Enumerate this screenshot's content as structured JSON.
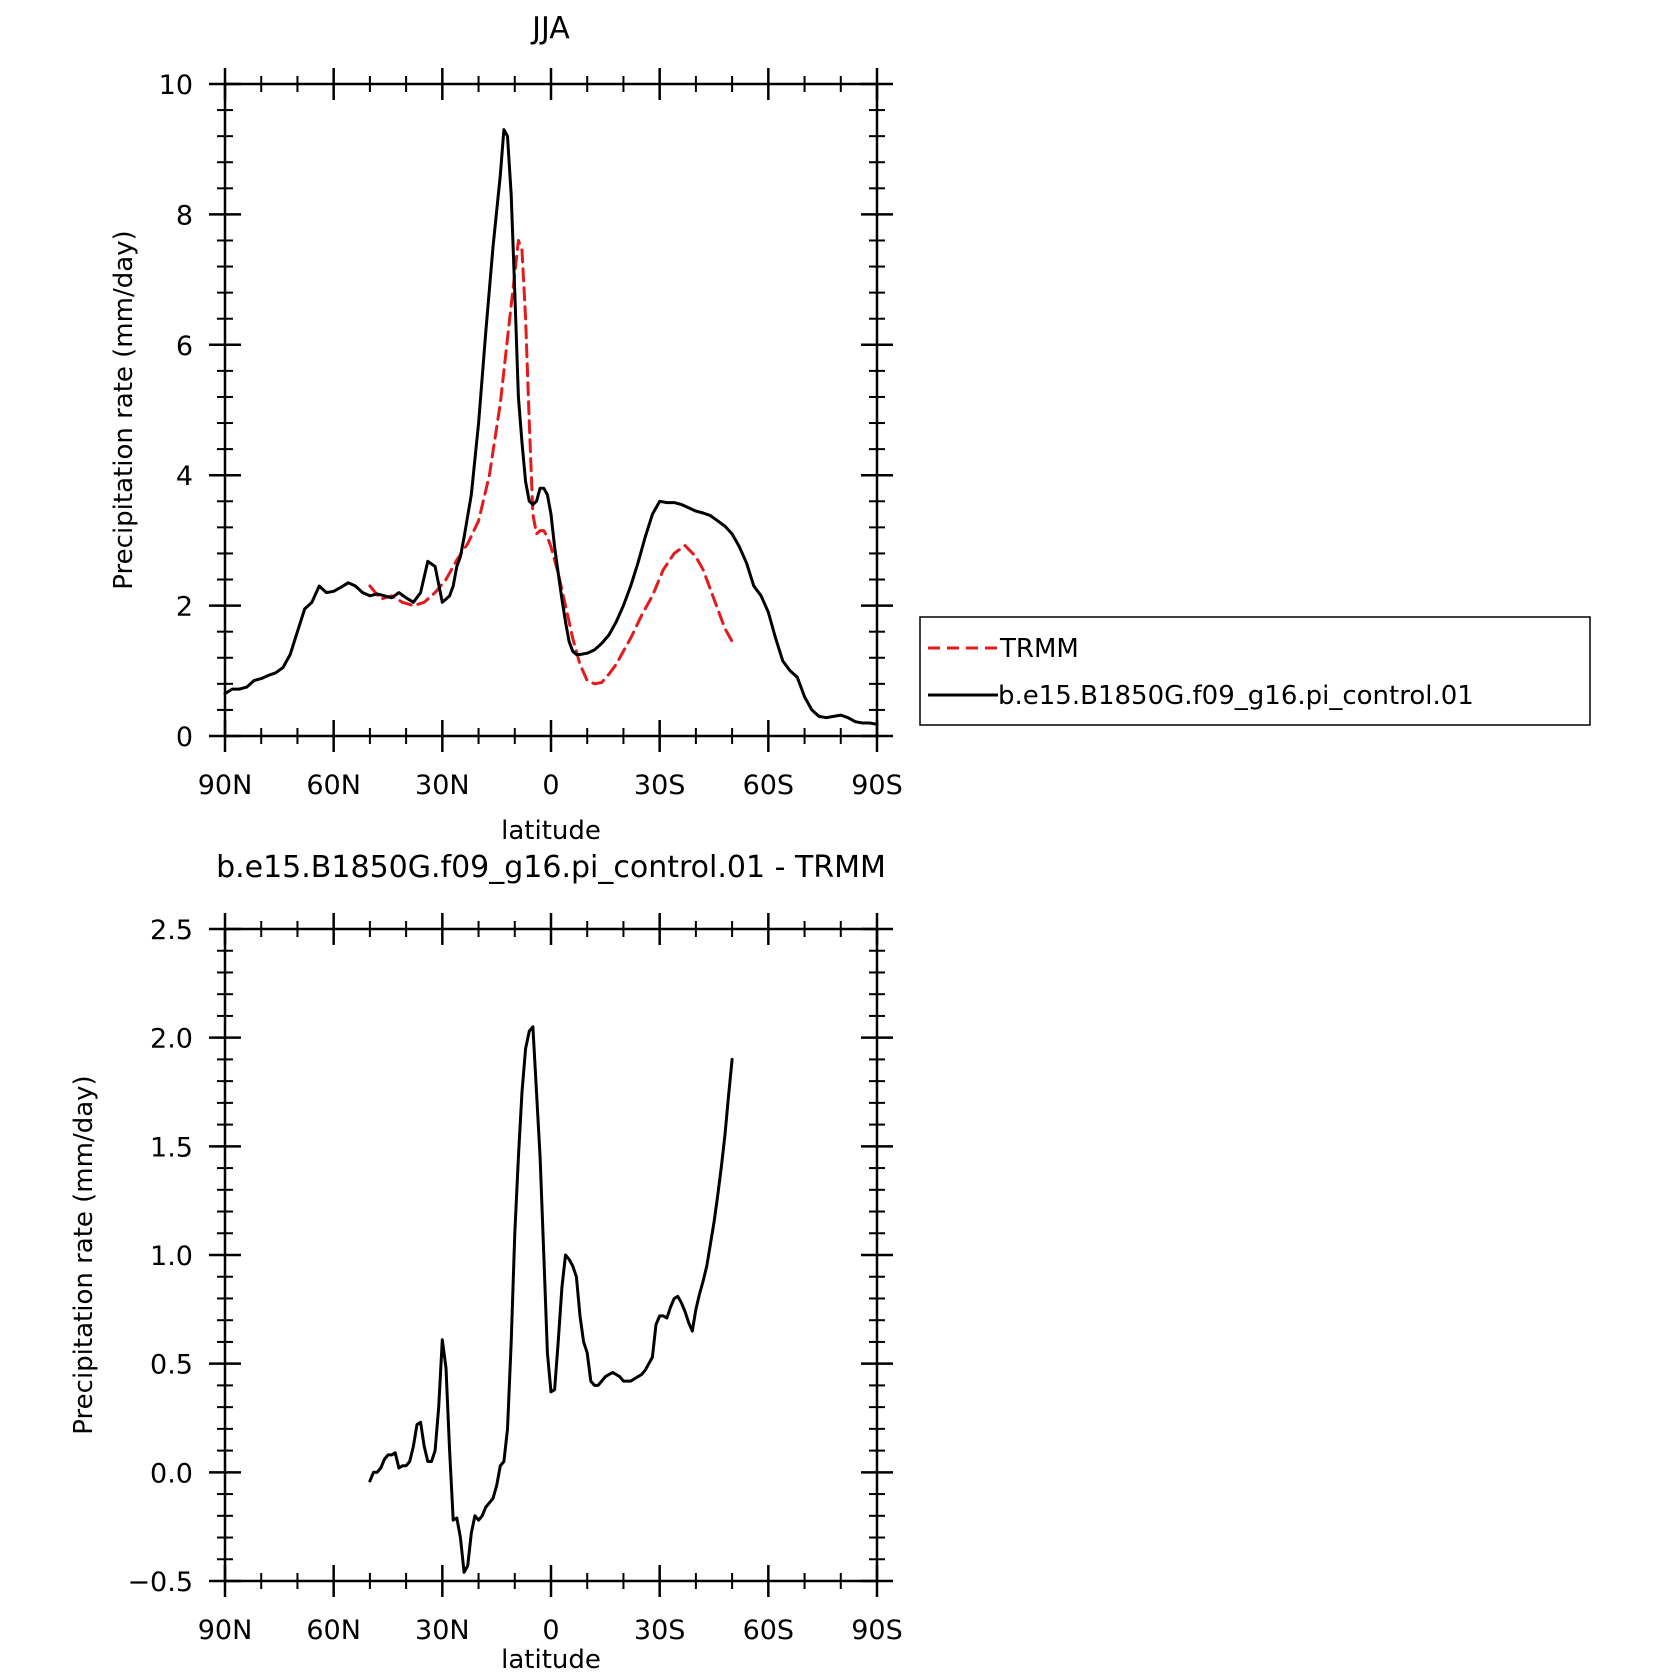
{
  "chart_data": [
    {
      "type": "line",
      "title": "JJA",
      "xlabel": "latitude",
      "ylabel": "Precipitation rate (mm/day)",
      "xlim": [
        90,
        -90
      ],
      "ylim": [
        0,
        10
      ],
      "xticks": [
        90,
        60,
        30,
        0,
        -30,
        -60,
        -90
      ],
      "xtick_labels": [
        "90N",
        "60N",
        "30N",
        "0",
        "30S",
        "60S",
        "90S"
      ],
      "yticks": [
        0,
        2,
        4,
        6,
        8,
        10
      ],
      "ytick_labels": [
        "0",
        "2",
        "4",
        "6",
        "8",
        "10"
      ],
      "legend": [
        "TRMM",
        "b.e15.B1850G.f09_g16.pi_control.01"
      ],
      "legend_position": "right",
      "grid": false,
      "series": [
        {
          "name": "TRMM",
          "color": "#e41a1c",
          "style": "dashed",
          "x": [
            50,
            47,
            44,
            41,
            38,
            35,
            32,
            29,
            26,
            23,
            20,
            17,
            14,
            12,
            10,
            9,
            8,
            7,
            6,
            5,
            4,
            3,
            2,
            1,
            0,
            -2,
            -4,
            -6,
            -8,
            -10,
            -12,
            -14,
            -16,
            -18,
            -20,
            -22,
            -25,
            -28,
            -31,
            -34,
            -37,
            -40,
            -42,
            -44,
            -46,
            -48,
            -50
          ],
          "y": [
            2.3,
            2.1,
            2.15,
            2.05,
            2.0,
            2.05,
            2.2,
            2.4,
            2.7,
            2.95,
            3.3,
            4.0,
            5.1,
            6.1,
            7.1,
            7.6,
            7.45,
            6.4,
            4.8,
            3.4,
            3.1,
            3.15,
            3.15,
            3.05,
            2.9,
            2.5,
            2.0,
            1.5,
            1.1,
            0.85,
            0.8,
            0.82,
            0.95,
            1.1,
            1.3,
            1.5,
            1.85,
            2.15,
            2.55,
            2.8,
            2.92,
            2.75,
            2.55,
            2.25,
            1.95,
            1.65,
            1.45
          ]
        },
        {
          "name": "b.e15.B1850G.f09_g16.pi_control.01",
          "color": "#000000",
          "style": "solid",
          "x": [
            90,
            88,
            86,
            84,
            82,
            80,
            78,
            76,
            74,
            72,
            70,
            68,
            66,
            64,
            62,
            60,
            58,
            56,
            54,
            52,
            50,
            48,
            46,
            44,
            42,
            40,
            38,
            36,
            34,
            32,
            30,
            29,
            28,
            27,
            26,
            25,
            24,
            22,
            20,
            18,
            16,
            14,
            13,
            12,
            11,
            10,
            9,
            8,
            7,
            6,
            5,
            4,
            3,
            2,
            1,
            0,
            -1,
            -2,
            -3,
            -4,
            -5,
            -6,
            -7,
            -8,
            -10,
            -12,
            -14,
            -16,
            -18,
            -20,
            -22,
            -24,
            -26,
            -28,
            -30,
            -32,
            -34,
            -36,
            -38,
            -40,
            -42,
            -44,
            -46,
            -48,
            -50,
            -52,
            -54,
            -56,
            -58,
            -60,
            -62,
            -64,
            -66,
            -68,
            -70,
            -72,
            -74,
            -76,
            -78,
            -80,
            -82,
            -84,
            -86,
            -88,
            -90
          ],
          "y": [
            0.65,
            0.72,
            0.72,
            0.75,
            0.85,
            0.88,
            0.93,
            0.97,
            1.05,
            1.25,
            1.6,
            1.95,
            2.05,
            2.3,
            2.2,
            2.22,
            2.28,
            2.35,
            2.3,
            2.2,
            2.15,
            2.18,
            2.15,
            2.12,
            2.2,
            2.12,
            2.05,
            2.2,
            2.68,
            2.6,
            2.05,
            2.1,
            2.15,
            2.3,
            2.6,
            2.75,
            3.05,
            3.7,
            4.8,
            6.2,
            7.5,
            8.6,
            9.3,
            9.2,
            8.3,
            6.8,
            5.2,
            4.5,
            3.9,
            3.6,
            3.55,
            3.6,
            3.8,
            3.8,
            3.7,
            3.4,
            2.9,
            2.5,
            2.1,
            1.75,
            1.45,
            1.3,
            1.25,
            1.25,
            1.27,
            1.32,
            1.42,
            1.55,
            1.75,
            2.0,
            2.3,
            2.65,
            3.05,
            3.4,
            3.6,
            3.58,
            3.58,
            3.55,
            3.5,
            3.45,
            3.42,
            3.38,
            3.3,
            3.22,
            3.1,
            2.9,
            2.65,
            2.3,
            2.15,
            1.9,
            1.5,
            1.15,
            1.0,
            0.9,
            0.6,
            0.4,
            0.3,
            0.28,
            0.3,
            0.32,
            0.28,
            0.22,
            0.2,
            0.2,
            0.18
          ]
        }
      ]
    },
    {
      "type": "line",
      "title": "b.e15.B1850G.f09_g16.pi_control.01 - TRMM",
      "xlabel": "latitude",
      "ylabel": "Precipitation rate (mm/day)",
      "xlim": [
        90,
        -90
      ],
      "ylim": [
        -0.5,
        2.5
      ],
      "xticks": [
        90,
        60,
        30,
        0,
        -30,
        -60,
        -90
      ],
      "xtick_labels": [
        "90N",
        "60N",
        "30N",
        "0",
        "30S",
        "60S",
        "90S"
      ],
      "yticks": [
        -0.5,
        0.0,
        0.5,
        1.0,
        1.5,
        2.0,
        2.5
      ],
      "ytick_labels": [
        "−0.5",
        "0.0",
        "0.5",
        "1.0",
        "1.5",
        "2.0",
        "2.5"
      ],
      "grid": false,
      "series": [
        {
          "color": "#000000",
          "style": "solid",
          "x": [
            50,
            49,
            48,
            47,
            46,
            45,
            44,
            43,
            42,
            41,
            40,
            39,
            38,
            37,
            36,
            35,
            34,
            33,
            32,
            31,
            30,
            29,
            28,
            27,
            26,
            25,
            24,
            23,
            22,
            21,
            20,
            19,
            18,
            17,
            16,
            15,
            14,
            13,
            12,
            11,
            10,
            9,
            8,
            7,
            6,
            5,
            4,
            3,
            2,
            1,
            0,
            -1,
            -2,
            -3,
            -4,
            -5,
            -6,
            -7,
            -8,
            -9,
            -10,
            -11,
            -12,
            -13,
            -14,
            -15,
            -16,
            -17,
            -18,
            -19,
            -20,
            -21,
            -22,
            -23,
            -24,
            -25,
            -26,
            -27,
            -28,
            -29,
            -30,
            -31,
            -32,
            -33,
            -34,
            -35,
            -36,
            -37,
            -38,
            -39,
            -40,
            -41,
            -42,
            -43,
            -44,
            -45,
            -46,
            -47,
            -48,
            -49,
            -50
          ],
          "y": [
            -0.04,
            0.0,
            0.0,
            0.02,
            0.06,
            0.08,
            0.08,
            0.09,
            0.02,
            0.03,
            0.03,
            0.05,
            0.12,
            0.22,
            0.23,
            0.12,
            0.05,
            0.05,
            0.1,
            0.3,
            0.61,
            0.48,
            0.1,
            -0.22,
            -0.21,
            -0.3,
            -0.46,
            -0.43,
            -0.28,
            -0.2,
            -0.22,
            -0.2,
            -0.16,
            -0.14,
            -0.12,
            -0.06,
            0.03,
            0.05,
            0.2,
            0.6,
            1.1,
            1.45,
            1.75,
            1.95,
            2.03,
            2.05,
            1.75,
            1.45,
            1.0,
            0.55,
            0.37,
            0.38,
            0.6,
            0.85,
            1.0,
            0.98,
            0.95,
            0.9,
            0.72,
            0.6,
            0.55,
            0.42,
            0.4,
            0.4,
            0.42,
            0.44,
            0.45,
            0.46,
            0.45,
            0.44,
            0.42,
            0.42,
            0.42,
            0.43,
            0.44,
            0.45,
            0.47,
            0.5,
            0.53,
            0.68,
            0.72,
            0.72,
            0.71,
            0.76,
            0.8,
            0.81,
            0.78,
            0.74,
            0.69,
            0.65,
            0.75,
            0.82,
            0.88,
            0.95,
            1.05,
            1.15,
            1.27,
            1.4,
            1.55,
            1.73,
            1.9
          ]
        }
      ]
    }
  ]
}
